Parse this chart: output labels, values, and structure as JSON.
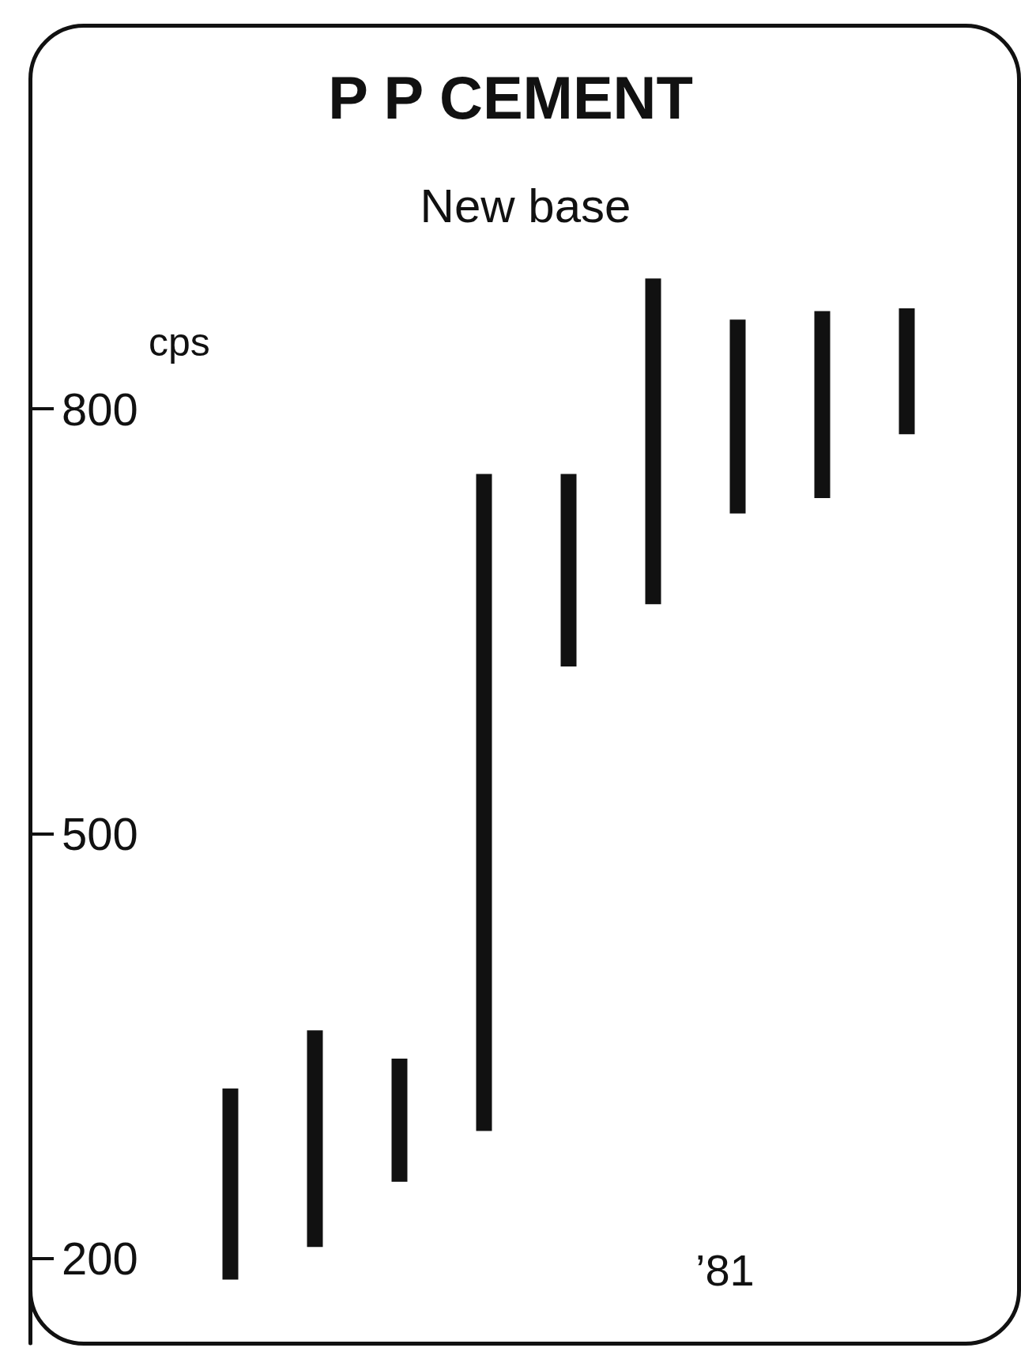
{
  "chart_data": {
    "type": "bar",
    "title": "P P CEMENT",
    "subtitle": "New base",
    "ylabel": "cps",
    "categories": [
      null,
      null,
      null,
      null,
      null,
      null,
      null,
      null,
      null
    ],
    "series": [
      {
        "color": "#111111",
        "values": [
          135,
          153,
          87,
          464,
          136,
          230,
          137,
          132,
          89
        ],
        "base": [
          185,
          208,
          254,
          290,
          618,
          662,
          726,
          737,
          782
        ]
      }
    ],
    "ylim": [
      140,
      900
    ],
    "yticks": [
      200,
      500,
      800
    ],
    "grid": false,
    "annotations": [
      "’81"
    ]
  }
}
